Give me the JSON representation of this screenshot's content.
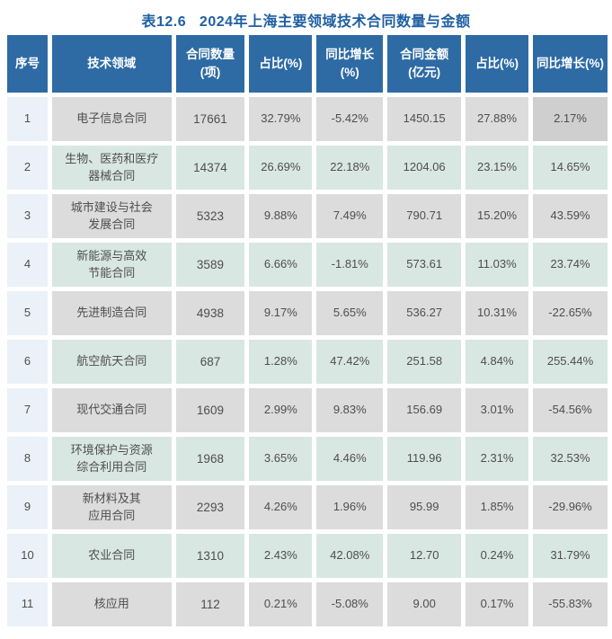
{
  "title": "表12.6   2024年上海主要领域技术合同数量与金额",
  "table": {
    "columns": [
      {
        "label": "序号"
      },
      {
        "label": "技术领域"
      },
      {
        "label": "合同数量\n(项)"
      },
      {
        "label": "占比(%)"
      },
      {
        "label": "同比增长\n(%)"
      },
      {
        "label": "合同金额\n(亿元)"
      },
      {
        "label": "占比(%)"
      },
      {
        "label": "同比增长(%)"
      }
    ],
    "rows": [
      {
        "cells": [
          "1",
          "电子信息合同",
          "17661",
          "32.79%",
          "-5.42%",
          "1450.15",
          "27.88%",
          "2.17%"
        ]
      },
      {
        "cells": [
          "2",
          "生物、医药和医疗\n器械合同",
          "14374",
          "26.69%",
          "22.18%",
          "1204.06",
          "23.15%",
          "14.65%"
        ]
      },
      {
        "cells": [
          "3",
          "城市建设与社会\n发展合同",
          "5323",
          "9.88%",
          "7.49%",
          "790.71",
          "15.20%",
          "43.59%"
        ]
      },
      {
        "cells": [
          "4",
          "新能源与高效\n节能合同",
          "3589",
          "6.66%",
          "-1.81%",
          "573.61",
          "11.03%",
          "23.74%"
        ]
      },
      {
        "cells": [
          "5",
          "先进制造合同",
          "4938",
          "9.17%",
          "5.65%",
          "536.27",
          "10.31%",
          "-22.65%"
        ]
      },
      {
        "cells": [
          "6",
          "航空航天合同",
          "687",
          "1.28%",
          "47.42%",
          "251.58",
          "4.84%",
          "255.44%"
        ]
      },
      {
        "cells": [
          "7",
          "现代交通合同",
          "1609",
          "2.99%",
          "9.83%",
          "156.69",
          "3.01%",
          "-54.56%"
        ]
      },
      {
        "cells": [
          "8",
          "环境保护与资源\n综合利用合同",
          "1968",
          "3.65%",
          "4.46%",
          "119.96",
          "2.31%",
          "32.53%"
        ]
      },
      {
        "cells": [
          "9",
          "新材料及其\n应用合同",
          "2293",
          "4.26%",
          "1.96%",
          "95.99",
          "1.85%",
          "-29.96%"
        ]
      },
      {
        "cells": [
          "10",
          "农业合同",
          "1310",
          "2.43%",
          "42.08%",
          "12.70",
          "0.24%",
          "31.79%"
        ]
      },
      {
        "cells": [
          "11",
          "核应用",
          "112",
          "0.21%",
          "-5.08%",
          "9.00",
          "0.17%",
          "-55.83%"
        ]
      }
    ],
    "highlight_cell": {
      "row": 1,
      "col": 8
    }
  },
  "colors": {
    "title_color": "#1E5FA3",
    "header_bg": "#2E6BA5",
    "header_text": "#FFFFFF",
    "row_gray_bg": "#DCDCDC",
    "row_green_bg": "#D8E7E1",
    "index_col_bg": "#EAF1F8",
    "highlight_cell_bg": "#CFCFCF",
    "body_text": "#4E4E4E",
    "page_bg": "#FFFFFF"
  },
  "chart_data": {
    "type": "table",
    "title": "表12.6 2024年上海主要领域技术合同数量与金额",
    "columns": [
      "序号",
      "技术领域",
      "合同数量（项）",
      "占比(%)",
      "同比增长(%)",
      "合同金额（亿元）",
      "占比(%)",
      "同比增长(%)"
    ],
    "rows": [
      [
        1,
        "电子信息合同",
        17661,
        32.79,
        -5.42,
        1450.15,
        27.88,
        2.17
      ],
      [
        2,
        "生物、医药和医疗器械合同",
        14374,
        26.69,
        22.18,
        1204.06,
        23.15,
        14.65
      ],
      [
        3,
        "城市建设与社会发展合同",
        5323,
        9.88,
        7.49,
        790.71,
        15.2,
        43.59
      ],
      [
        4,
        "新能源与高效节能合同",
        3589,
        6.66,
        -1.81,
        573.61,
        11.03,
        23.74
      ],
      [
        5,
        "先进制造合同",
        4938,
        9.17,
        5.65,
        536.27,
        10.31,
        -22.65
      ],
      [
        6,
        "航空航天合同",
        687,
        1.28,
        47.42,
        251.58,
        4.84,
        255.44
      ],
      [
        7,
        "现代交通合同",
        1609,
        2.99,
        9.83,
        156.69,
        3.01,
        -54.56
      ],
      [
        8,
        "环境保护与资源综合利用合同",
        1968,
        3.65,
        4.46,
        119.96,
        2.31,
        32.53
      ],
      [
        9,
        "新材料及其应用合同",
        2293,
        4.26,
        1.96,
        95.99,
        1.85,
        -29.96
      ],
      [
        10,
        "农业合同",
        1310,
        2.43,
        42.08,
        12.7,
        0.24,
        31.79
      ],
      [
        11,
        "核应用",
        112,
        0.21,
        -5.08,
        9.0,
        0.17,
        -55.83
      ]
    ]
  }
}
